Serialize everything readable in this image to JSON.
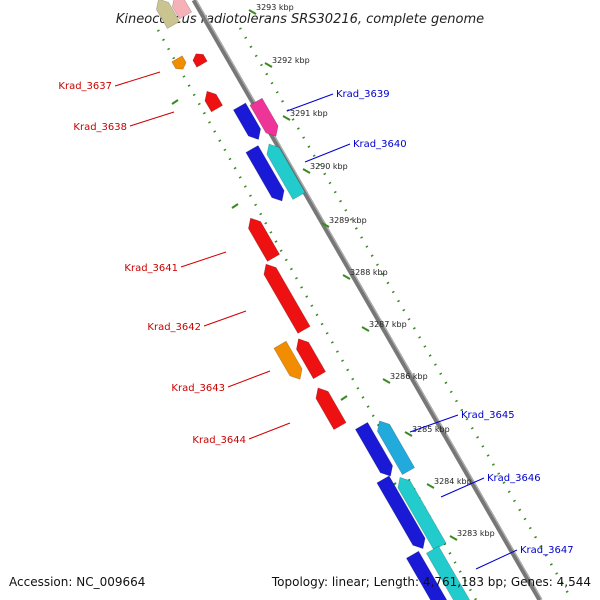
{
  "title": "Kineococcus radiotolerans SRS30216, complete genome",
  "footer": {
    "accession": "Accession: NC_009664",
    "stats": "Topology: linear; Length: 4,761,183 bp; Genes: 4,544"
  },
  "colors": {
    "backbone": "#777777",
    "tick_green": "#3a8a22",
    "left_label": "#cc0000",
    "right_label": "#0000cc",
    "gene_red": "#ee1111",
    "gene_orange": "#f28c00",
    "gene_blue": "#1a1ad6",
    "gene_cyan": "#22cccc",
    "gene_pink": "#ee3399",
    "gene_olive": "#c9c490"
  },
  "kbp_marks": [
    {
      "label": "3293 kbp",
      "faded": true
    },
    {
      "label": "3292 kbp",
      "faded": false
    },
    {
      "label": "3291 kbp",
      "faded": false
    },
    {
      "label": "3290 kbp",
      "faded": false
    },
    {
      "label": "3289 kbp",
      "faded": false
    },
    {
      "label": "3288 kbp",
      "faded": false
    },
    {
      "label": "3287 kbp",
      "faded": false
    },
    {
      "label": "3286 kbp",
      "faded": false
    },
    {
      "label": "3285 kbp",
      "faded": false
    },
    {
      "label": "3284 kbp",
      "faded": false
    },
    {
      "label": "3283 kbp",
      "faded": false
    }
  ],
  "left_labels": [
    "Krad_3637",
    "Krad_3638",
    "Krad_3641",
    "Krad_3642",
    "Krad_3643",
    "Krad_3644"
  ],
  "right_labels": [
    "Krad_3639",
    "Krad_3640",
    "Krad_3645",
    "Krad_3646",
    "Krad_3647"
  ]
}
